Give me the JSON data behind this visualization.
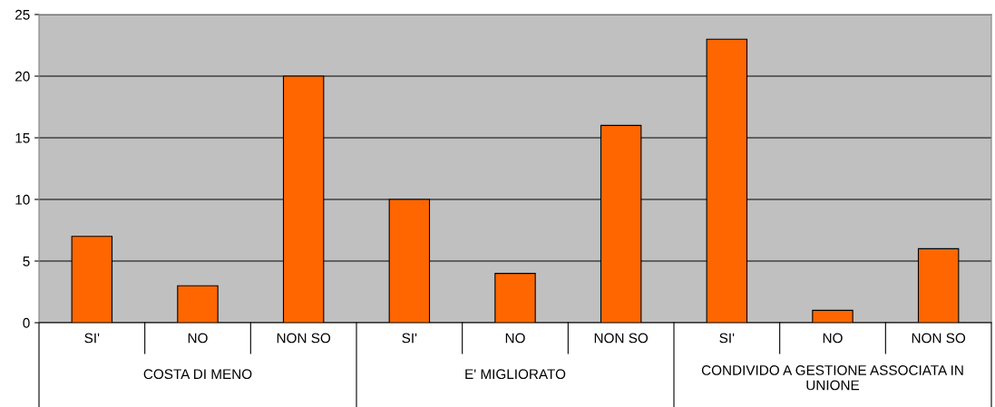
{
  "chart_data": {
    "type": "bar",
    "categories": [
      "SI'",
      "NO",
      "NON SO",
      "SI'",
      "NO",
      "NON SO",
      "SI'",
      "NO",
      "NON SO"
    ],
    "values": [
      7,
      3,
      20,
      10,
      4,
      16,
      23,
      1,
      6
    ],
    "color": "#ff6600",
    "ylim": [
      0,
      25
    ],
    "yticks": [
      0,
      5,
      10,
      15,
      20,
      25
    ],
    "grid": "y",
    "legend": false,
    "annotations": [
      "COSTA DI MENO",
      "E' MIGLIORATO",
      "CONDIVIDO A GESTIONE ASSOCIATA IN UNIONE"
    ]
  }
}
